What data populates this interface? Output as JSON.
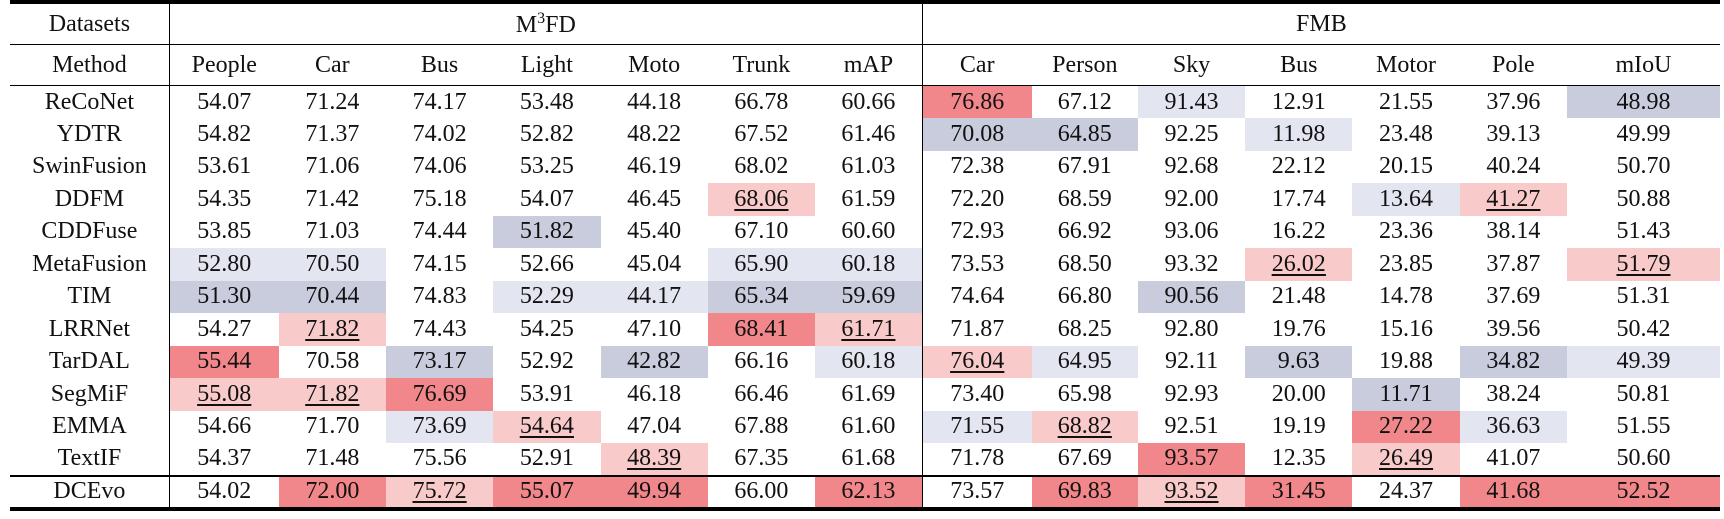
{
  "header": {
    "datasets_label": "Datasets",
    "method_label": "Method",
    "group1": {
      "name": "M",
      "sup": "3",
      "suffix": "FD"
    },
    "group2": {
      "name": "FMB"
    },
    "columns1": [
      "People",
      "Car",
      "Bus",
      "Light",
      "Moto",
      "Trunk",
      "mAP"
    ],
    "columns2": [
      "Car",
      "Person",
      "Sky",
      "Bus",
      "Motor",
      "Pole",
      "mIoU"
    ]
  },
  "highlight_colors": {
    "best": "#f2878b",
    "second": "#f9caca",
    "worst": "#c8ccdc",
    "second_worst": "#e3e6f0"
  },
  "rows": [
    {
      "method": "ReCoNet",
      "values": [
        "54.07",
        "71.24",
        "74.17",
        "53.48",
        "44.18",
        "66.78",
        "60.66",
        "76.86",
        "67.12",
        "91.43",
        "12.91",
        "21.55",
        "37.96",
        "48.98"
      ]
    },
    {
      "method": "YDTR",
      "values": [
        "54.82",
        "71.37",
        "74.02",
        "52.82",
        "48.22",
        "67.52",
        "61.46",
        "70.08",
        "64.85",
        "92.25",
        "11.98",
        "23.48",
        "39.13",
        "49.99"
      ]
    },
    {
      "method": "SwinFusion",
      "values": [
        "53.61",
        "71.06",
        "74.06",
        "53.25",
        "46.19",
        "68.02",
        "61.03",
        "72.38",
        "67.91",
        "92.68",
        "22.12",
        "20.15",
        "40.24",
        "50.70"
      ]
    },
    {
      "method": "DDFM",
      "values": [
        "54.35",
        "71.42",
        "75.18",
        "54.07",
        "46.45",
        "68.06",
        "61.59",
        "72.20",
        "68.59",
        "92.00",
        "17.74",
        "13.64",
        "41.27",
        "50.88"
      ]
    },
    {
      "method": "CDDFuse",
      "values": [
        "53.85",
        "71.03",
        "74.44",
        "51.82",
        "45.40",
        "67.10",
        "60.60",
        "72.93",
        "66.92",
        "93.06",
        "16.22",
        "23.36",
        "38.14",
        "51.43"
      ]
    },
    {
      "method": "MetaFusion",
      "values": [
        "52.80",
        "70.50",
        "74.15",
        "52.66",
        "45.04",
        "65.90",
        "60.18",
        "73.53",
        "68.50",
        "93.32",
        "26.02",
        "23.85",
        "37.87",
        "51.79"
      ]
    },
    {
      "method": "TIM",
      "values": [
        "51.30",
        "70.44",
        "74.83",
        "52.29",
        "44.17",
        "65.34",
        "59.69",
        "74.64",
        "66.80",
        "90.56",
        "21.48",
        "14.78",
        "37.69",
        "51.31"
      ]
    },
    {
      "method": "LRRNet",
      "values": [
        "54.27",
        "71.82",
        "74.43",
        "54.25",
        "47.10",
        "68.41",
        "61.71",
        "71.87",
        "68.25",
        "92.80",
        "19.76",
        "15.16",
        "39.56",
        "50.42"
      ]
    },
    {
      "method": "TarDAL",
      "values": [
        "55.44",
        "70.58",
        "73.17",
        "52.92",
        "42.82",
        "66.16",
        "60.18",
        "76.04",
        "64.95",
        "92.11",
        "9.63",
        "19.88",
        "34.82",
        "49.39"
      ]
    },
    {
      "method": "SegMiF",
      "values": [
        "55.08",
        "71.82",
        "76.69",
        "53.91",
        "46.18",
        "66.46",
        "61.69",
        "73.40",
        "65.98",
        "92.93",
        "20.00",
        "11.71",
        "38.24",
        "50.81"
      ]
    },
    {
      "method": "EMMA",
      "values": [
        "54.66",
        "71.70",
        "73.69",
        "54.64",
        "47.04",
        "67.88",
        "61.60",
        "71.55",
        "68.82",
        "92.51",
        "19.19",
        "27.22",
        "36.63",
        "51.55"
      ]
    },
    {
      "method": "TextIF",
      "values": [
        "54.37",
        "71.48",
        "75.56",
        "52.91",
        "48.39",
        "67.35",
        "61.68",
        "71.78",
        "67.69",
        "93.57",
        "12.35",
        "26.49",
        "41.07",
        "50.60"
      ]
    },
    {
      "method": "DCEvo",
      "values": [
        "54.02",
        "72.00",
        "75.72",
        "55.07",
        "49.94",
        "66.00",
        "62.13",
        "73.57",
        "69.83",
        "93.52",
        "31.45",
        "24.37",
        "41.68",
        "52.52"
      ]
    }
  ]
}
